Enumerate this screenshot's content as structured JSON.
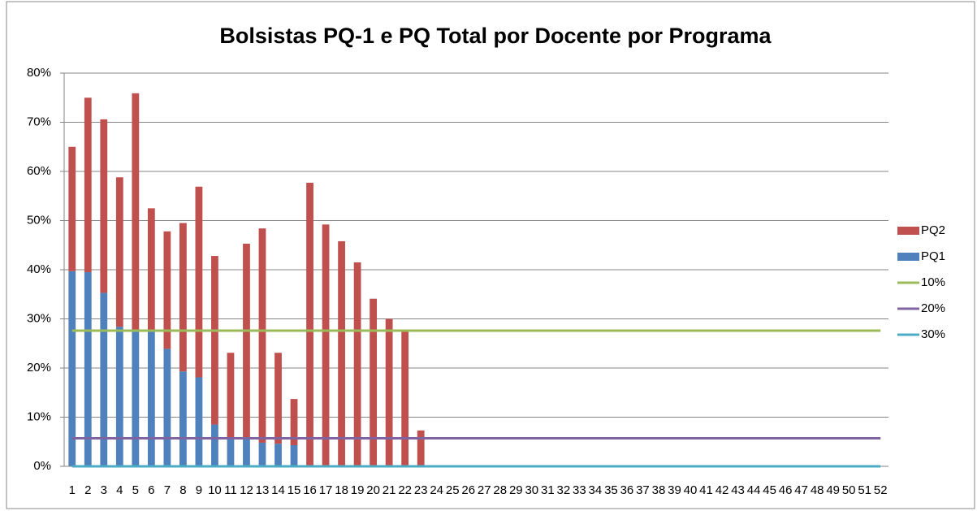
{
  "chart_data": {
    "type": "bar",
    "stacked": true,
    "title": "Bolsistas PQ-1 e PQ Total por Docente por Programa",
    "categories": [
      "1",
      "2",
      "3",
      "4",
      "5",
      "6",
      "7",
      "8",
      "9",
      "10",
      "11",
      "12",
      "13",
      "14",
      "15",
      "16",
      "17",
      "18",
      "19",
      "20",
      "21",
      "22",
      "23",
      "24",
      "25",
      "26",
      "27",
      "28",
      "29",
      "30",
      "31",
      "32",
      "33",
      "34",
      "35",
      "36",
      "37",
      "38",
      "39",
      "40",
      "41",
      "42",
      "43",
      "44",
      "45",
      "46",
      "47",
      "48",
      "49",
      "50",
      "51",
      "52"
    ],
    "series": [
      {
        "name": "PQ1",
        "type": "bar",
        "color": "#4f81bd",
        "values": [
          39.7,
          39.5,
          35.3,
          28.4,
          27.6,
          27.6,
          23.9,
          19.3,
          18.1,
          8.5,
          5.8,
          5.7,
          4.8,
          4.6,
          4.3,
          0,
          0,
          0,
          0,
          0,
          0,
          0,
          0,
          0,
          0,
          0,
          0,
          0,
          0,
          0,
          0,
          0,
          0,
          0,
          0,
          0,
          0,
          0,
          0,
          0,
          0,
          0,
          0,
          0,
          0,
          0,
          0,
          0,
          0,
          0,
          0,
          0
        ]
      },
      {
        "name": "PQ2",
        "type": "bar",
        "color": "#c0504d",
        "values": [
          25.3,
          35.5,
          35.3,
          30.4,
          48.3,
          24.9,
          23.9,
          30.2,
          38.8,
          34.3,
          17.3,
          39.6,
          43.6,
          18.5,
          9.4,
          57.7,
          49.2,
          45.8,
          41.5,
          34.1,
          30.0,
          27.5,
          7.3,
          0,
          0,
          0,
          0,
          0,
          0,
          0,
          0,
          0,
          0,
          0,
          0,
          0,
          0,
          0,
          0,
          0,
          0,
          0,
          0,
          0,
          0,
          0,
          0,
          0,
          0,
          0,
          0,
          0
        ]
      },
      {
        "name": "10%",
        "type": "line",
        "color": "#9bbb59",
        "values": [
          27.6,
          27.6,
          27.6,
          27.6,
          27.6,
          27.6,
          27.6,
          27.6,
          27.6,
          27.6,
          27.6,
          27.6,
          27.6,
          27.6,
          27.6,
          27.6,
          27.6,
          27.6,
          27.6,
          27.6,
          27.6,
          27.6,
          27.6,
          27.6,
          27.6,
          27.6,
          27.6,
          27.6,
          27.6,
          27.6,
          27.6,
          27.6,
          27.6,
          27.6,
          27.6,
          27.6,
          27.6,
          27.6,
          27.6,
          27.6,
          27.6,
          27.6,
          27.6,
          27.6,
          27.6,
          27.6,
          27.6,
          27.6,
          27.6,
          27.6,
          27.6,
          27.6
        ]
      },
      {
        "name": "20%",
        "type": "line",
        "color": "#8064a2",
        "values": [
          5.7,
          5.7,
          5.7,
          5.7,
          5.7,
          5.7,
          5.7,
          5.7,
          5.7,
          5.7,
          5.7,
          5.7,
          5.7,
          5.7,
          5.7,
          5.7,
          5.7,
          5.7,
          5.7,
          5.7,
          5.7,
          5.7,
          5.7,
          5.7,
          5.7,
          5.7,
          5.7,
          5.7,
          5.7,
          5.7,
          5.7,
          5.7,
          5.7,
          5.7,
          5.7,
          5.7,
          5.7,
          5.7,
          5.7,
          5.7,
          5.7,
          5.7,
          5.7,
          5.7,
          5.7,
          5.7,
          5.7,
          5.7,
          5.7,
          5.7,
          5.7,
          5.7
        ]
      },
      {
        "name": "30%",
        "type": "line",
        "color": "#4bacc6",
        "values": [
          0,
          0,
          0,
          0,
          0,
          0,
          0,
          0,
          0,
          0,
          0,
          0,
          0,
          0,
          0,
          0,
          0,
          0,
          0,
          0,
          0,
          0,
          0,
          0,
          0,
          0,
          0,
          0,
          0,
          0,
          0,
          0,
          0,
          0,
          0,
          0,
          0,
          0,
          0,
          0,
          0,
          0,
          0,
          0,
          0,
          0,
          0,
          0,
          0,
          0,
          0,
          0
        ]
      }
    ],
    "ylim": [
      0,
      80
    ],
    "yticks": [
      {
        "value": 0,
        "label": "0%"
      },
      {
        "value": 10,
        "label": "10%"
      },
      {
        "value": 20,
        "label": "20%"
      },
      {
        "value": 30,
        "label": "30%"
      },
      {
        "value": 40,
        "label": "40%"
      },
      {
        "value": 50,
        "label": "50%"
      },
      {
        "value": 60,
        "label": "60%"
      },
      {
        "value": 70,
        "label": "70%"
      },
      {
        "value": 80,
        "label": "80%"
      }
    ],
    "grid": true,
    "legend": "right"
  }
}
